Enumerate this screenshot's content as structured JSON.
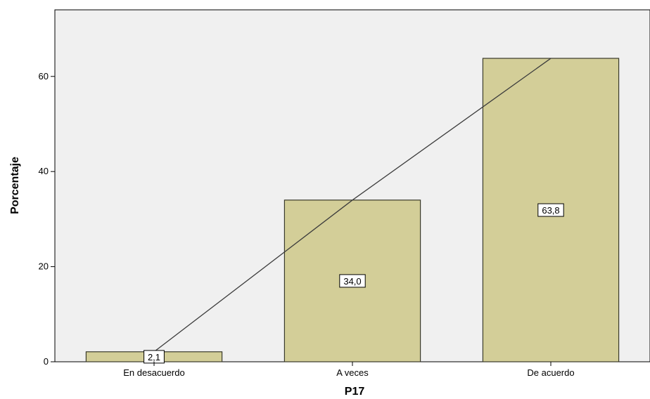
{
  "chart_data": {
    "type": "bar",
    "categories": [
      "En desacuerdo",
      "A veces",
      "De acuerdo"
    ],
    "values": [
      2.1,
      34.0,
      63.8
    ],
    "data_labels": [
      "2,1",
      "34,0",
      "63,8"
    ],
    "xlabel": "P17",
    "ylabel": "Porcentaje",
    "ylim": [
      0,
      74
    ],
    "yticks": [
      0,
      20,
      40,
      60
    ],
    "ytick_labels": [
      "0",
      "20",
      "40",
      "60"
    ],
    "overlay_line": true,
    "colors": {
      "plot_background": "#f0f0f0",
      "bar_fill": "#d3ce98",
      "bar_stroke": "#3a3a2a",
      "line": "#3c3c3c",
      "label_box": "#ffffff"
    }
  }
}
